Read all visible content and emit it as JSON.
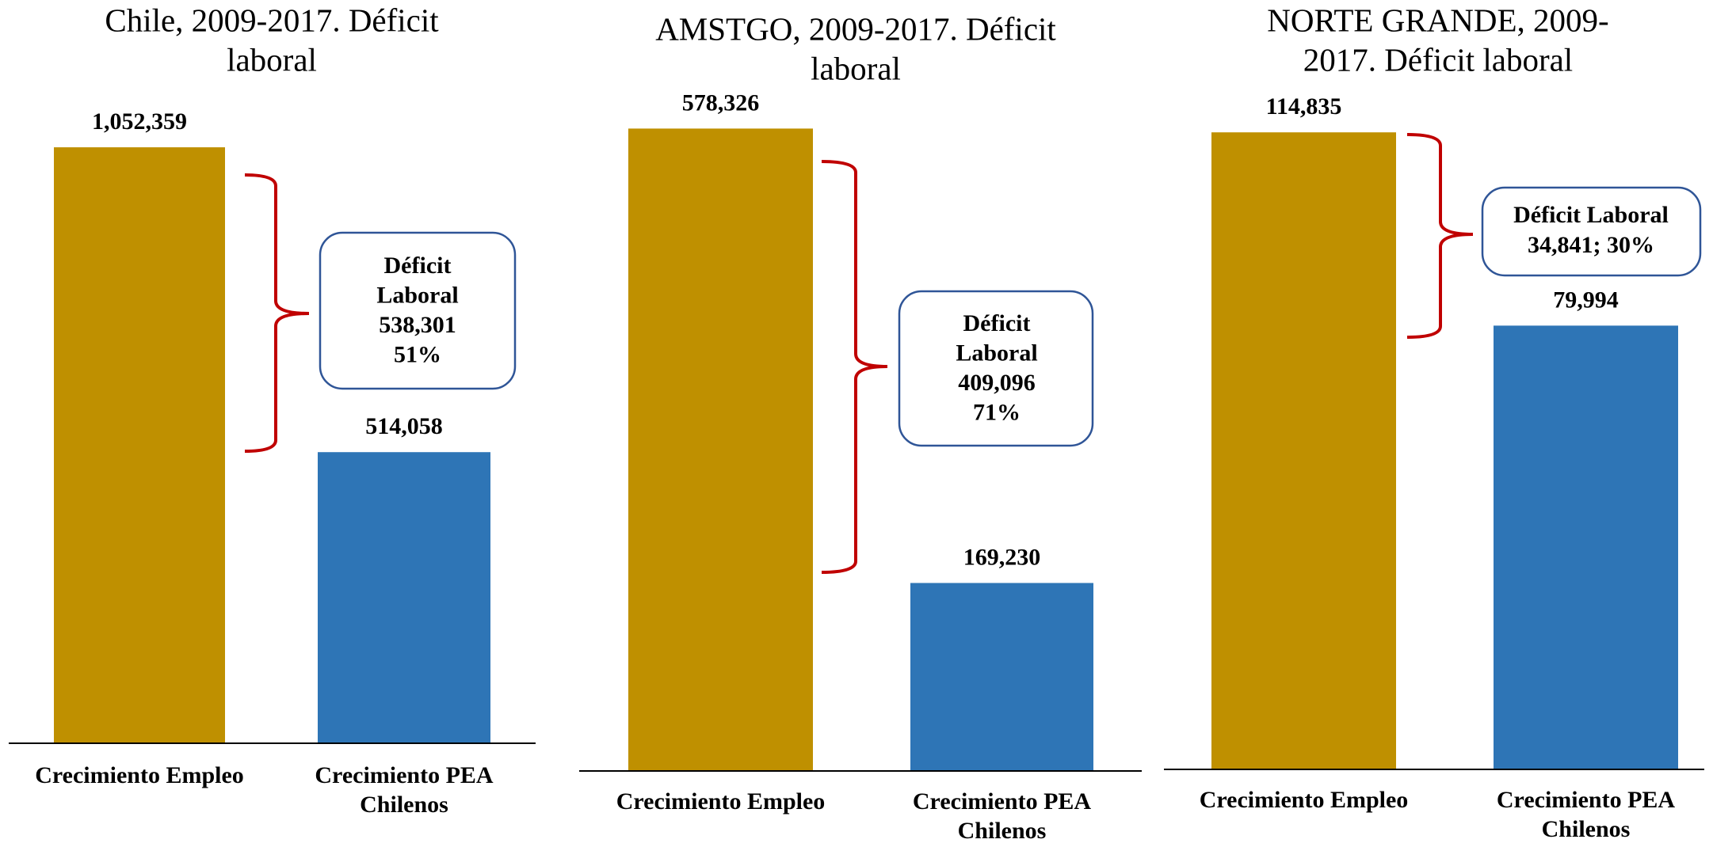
{
  "chart_data": [
    {
      "type": "bar",
      "title": [
        "Chile, 2009-2017. Déficit",
        "laboral"
      ],
      "categories": [
        "Crecimiento Empleo",
        "Crecimiento PEA Chilenos"
      ],
      "values": [
        1052359,
        514058
      ],
      "value_labels": [
        "1,052,359",
        "514,058"
      ],
      "colors": [
        "#bf9000",
        "#2e75b6"
      ],
      "ylim": [
        0,
        1100000
      ],
      "annotation": [
        "Déficit",
        "Laboral",
        "538,301",
        "51%"
      ]
    },
    {
      "type": "bar",
      "title": [
        "AMSTGO, 2009-2017. Déficit",
        "laboral"
      ],
      "categories": [
        "Crecimiento Empleo",
        "Crecimiento PEA Chilenos"
      ],
      "values": [
        578326,
        169230
      ],
      "value_labels": [
        "578,326",
        "169,230"
      ],
      "colors": [
        "#bf9000",
        "#2e75b6"
      ],
      "ylim": [
        0,
        600000
      ],
      "annotation": [
        "Déficit",
        "Laboral",
        "409,096",
        "71%"
      ]
    },
    {
      "type": "bar",
      "title": [
        "NORTE GRANDE, 2009-",
        "2017. Déficit laboral"
      ],
      "categories": [
        "Crecimiento Empleo",
        "Crecimiento PEA Chilenos"
      ],
      "values": [
        114835,
        79994
      ],
      "value_labels": [
        "114,835",
        "79,994"
      ],
      "colors": [
        "#bf9000",
        "#2e75b6"
      ],
      "ylim": [
        0,
        120000
      ],
      "annotation": [
        "Déficit Laboral",
        "34,841; 30%"
      ]
    }
  ]
}
